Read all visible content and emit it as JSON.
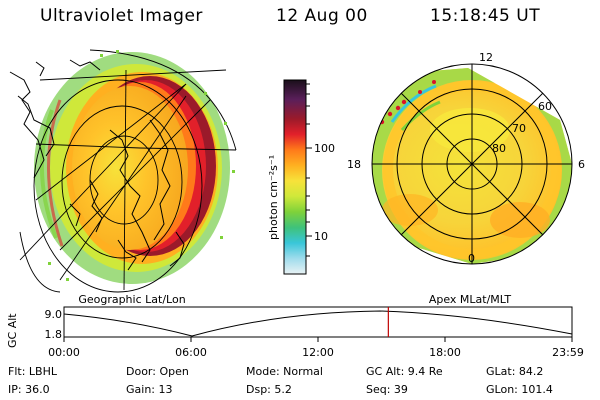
{
  "header": {
    "instrument": "Ultraviolet Imager",
    "date": "12 Aug 00",
    "time": "15:18:45 UT"
  },
  "colorbar": {
    "unit_label": "photon cm⁻²s⁻¹",
    "ticks": [
      "100",
      "10"
    ],
    "colors": [
      "#1a0f1a",
      "#5a1f5a",
      "#9b1a2a",
      "#e2202a",
      "#ff7a1a",
      "#ffb020",
      "#f7e23a",
      "#cfe83a",
      "#7fd23a",
      "#3fc27a",
      "#39c6d9",
      "#9fdcec",
      "#e8f2f4"
    ]
  },
  "left_panel": {
    "caption": "Geographic Lat/Lon"
  },
  "right_panel": {
    "caption": "Apex MLat/MLT",
    "mlt_labels": [
      "12",
      "18",
      "6",
      "0"
    ],
    "mlat_labels": [
      "60",
      "70",
      "80"
    ]
  },
  "altitude_plot": {
    "ylabel": "GC Alt",
    "yticks": [
      "9.0",
      "1.8"
    ],
    "xticks": [
      "00:00",
      "06:00",
      "12:00",
      "18:00",
      "23:59"
    ],
    "current_time_marker": "15:18:45",
    "marker_color": "#c00000"
  },
  "footer": [
    [
      "Flt: LBHL",
      "Door: Open",
      "Mode: Normal",
      "GC Alt: 9.4 Re",
      "GLat: 84.2"
    ],
    [
      "IP: 36.0",
      "Gain: 13",
      "Dsp:    5.2",
      "Seq: 39",
      "GLon: 101.4"
    ]
  ]
}
